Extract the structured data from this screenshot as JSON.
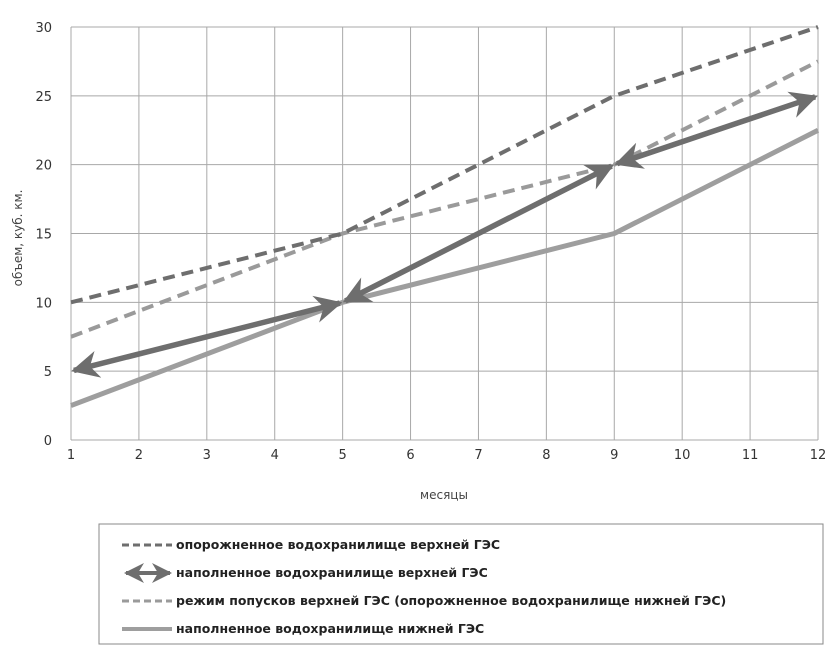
{
  "chart_data": {
    "type": "line",
    "title": "",
    "xlabel": "месяцы",
    "ylabel": "объем, куб. км.",
    "xlim": [
      1,
      12
    ],
    "ylim": [
      0,
      30
    ],
    "x_ticks": [
      "1",
      "2",
      "3",
      "4",
      "5",
      "6",
      "7",
      "8",
      "9",
      "10",
      "11",
      "12"
    ],
    "y_ticks": [
      "0",
      "5",
      "10",
      "15",
      "20",
      "25",
      "30"
    ],
    "grid": true,
    "legend_position": "bottom",
    "series": [
      {
        "name": "опорожненное водохранилище верхней ГЭС",
        "style": "dashed",
        "color": "#6e6e6e",
        "points": [
          [
            1,
            10
          ],
          [
            5,
            15
          ],
          [
            9,
            25
          ],
          [
            12,
            30
          ]
        ]
      },
      {
        "name": "наполненное водохранилище верхней ГЭС",
        "style": "double-arrow",
        "color": "#6e6e6e",
        "points": [
          [
            1,
            5
          ],
          [
            5,
            10
          ],
          [
            9,
            20
          ],
          [
            12,
            25
          ]
        ]
      },
      {
        "name": "режим попусков верхней ГЭС (опорожненное водохранилище нижней ГЭС)",
        "style": "dashed",
        "color": "#9a9a9a",
        "points": [
          [
            1,
            7.5
          ],
          [
            5,
            15
          ],
          [
            9,
            20
          ],
          [
            12,
            27.5
          ]
        ]
      },
      {
        "name": "наполненное водохранилище нижней ГЭС",
        "style": "solid",
        "color": "#9e9e9e",
        "points": [
          [
            1,
            2.5
          ],
          [
            5,
            10
          ],
          [
            9,
            15
          ],
          [
            12,
            22.5
          ]
        ]
      }
    ]
  }
}
